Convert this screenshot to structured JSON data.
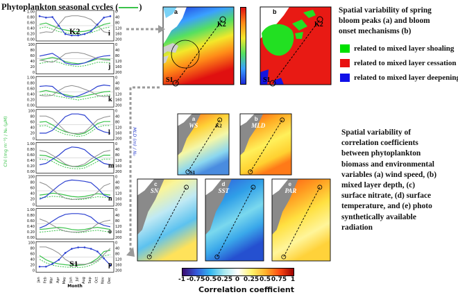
{
  "left": {
    "title": "Phytoplankton seasonal cycles (",
    "title_tail": ")",
    "y_axis_left_label": "Chl (mg m⁻³) / N₀ (μM)",
    "y_axis_right_label": "MLD (m) / N₀",
    "x_axis_label": "Month",
    "months": [
      "Jan",
      "Feb",
      "Mar",
      "Apr",
      "May",
      "Jun",
      "Jul",
      "Aug",
      "Sep",
      "Oct",
      "Nov",
      "Dec"
    ],
    "left_ticks": [
      "1.00",
      "0.80",
      "0.60",
      "0.40",
      "0.20",
      "0.00"
    ],
    "left_ticks_alt": [
      "100",
      "80",
      "60",
      "40",
      "20",
      "0"
    ],
    "right_ticks": [
      "0",
      "40",
      "80",
      "120",
      "160",
      "200"
    ],
    "panels": [
      {
        "letter": "i",
        "tag": "K2"
      },
      {
        "letter": "j",
        "tag": ""
      },
      {
        "letter": "k",
        "tag": ""
      },
      {
        "letter": "l",
        "tag": ""
      },
      {
        "letter": "m",
        "tag": ""
      },
      {
        "letter": "n",
        "tag": ""
      },
      {
        "letter": "o",
        "tag": ""
      },
      {
        "letter": "p",
        "tag": "S1"
      }
    ],
    "green_color": "#39c24a",
    "blue_color": "#2a3fd0",
    "gray_color": "#8c8c8c"
  },
  "top_maps": {
    "a": {
      "letter": "a",
      "k2": "K2",
      "s1": "S1"
    },
    "b": {
      "letter": "b",
      "k2": "K2",
      "s1": "S1"
    },
    "lat_labels": [
      "50°N",
      "45°N",
      "40°N",
      "35°N",
      "30°N"
    ],
    "lon_labels": [
      "140°E",
      "145°E",
      "150°E",
      "155°E",
      "160°E",
      "165°E"
    ],
    "colorbar_a_ticks": [
      "1.0",
      "0.8",
      "0.6",
      "0.4",
      "0.2",
      "0.0"
    ]
  },
  "top_text": {
    "line1": "Spatial variability of spring",
    "line2": "bloom peaks (a) and bloom",
    "line3": "onset mechanisms (b)"
  },
  "legend": [
    {
      "label": "related to mixed layer shoaling",
      "color": "#00e000"
    },
    {
      "label": "related to mixed layer cessation",
      "color": "#e81010"
    },
    {
      "label": "related to mixed layer deepening",
      "color": "#1010e8"
    }
  ],
  "corr_maps": [
    {
      "letter": "a",
      "var": "WS",
      "k2": "K2",
      "s1": "S1"
    },
    {
      "letter": "b",
      "var": "MLD",
      "k2": "",
      "s1": ""
    },
    {
      "letter": "c",
      "var": "SN",
      "k2": "",
      "s1": ""
    },
    {
      "letter": "d",
      "var": "SST",
      "k2": "",
      "s1": ""
    },
    {
      "letter": "e",
      "var": "PAR",
      "k2": "",
      "s1": ""
    }
  ],
  "corr_text": {
    "line1": "Spatial variability of",
    "line2": "correlation coefficients",
    "line3": "between phytoplankton",
    "line4": "biomass and environmental",
    "line5": "variables (a) wind speed, (b)",
    "line6": "mixed layer depth, (c)",
    "line7": "surface nitrate, (d) surface",
    "line8": "temperature, and (e) photo",
    "line9": "synthetically available",
    "line10": "radiation"
  },
  "colorbar": {
    "ticks": [
      "-1",
      "-0.75",
      "-0.5",
      "-0.25",
      "0",
      "0.25",
      "0.5",
      "0.75",
      "1"
    ],
    "label": "Correlation coefficient"
  }
}
